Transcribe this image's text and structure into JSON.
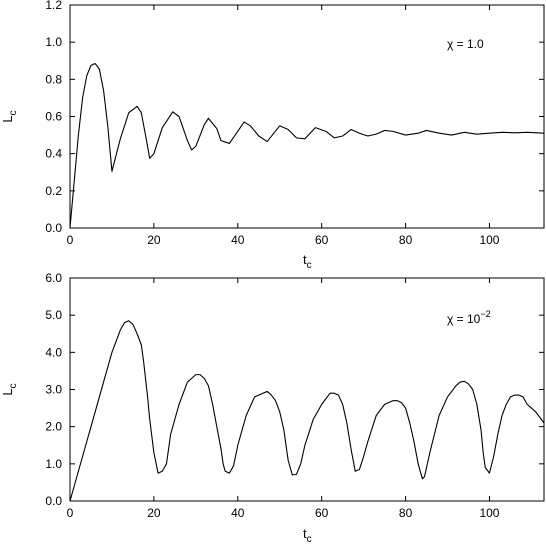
{
  "chart_data": [
    {
      "type": "line",
      "xlabel": "t",
      "xlabel_sub": "c",
      "ylabel": "L",
      "ylabel_sub": "c",
      "xlim": [
        0,
        113
      ],
      "ylim": [
        0,
        1.2
      ],
      "x_ticks": [
        0,
        20,
        40,
        60,
        80,
        100
      ],
      "x_tick_labels": [
        "0",
        "20",
        "40",
        "60",
        "80",
        "100"
      ],
      "y_ticks": [
        0,
        0.2,
        0.4,
        0.6,
        0.8,
        1.0,
        1.2
      ],
      "y_tick_labels": [
        "0.0",
        "0.2",
        "0.4",
        "0.6",
        "0.8",
        "1.0",
        "1.2"
      ],
      "grid": false,
      "annotation": {
        "prefix": "χ = ",
        "value": "1.0",
        "superscript": ""
      },
      "series": [
        {
          "color": "#000000",
          "x": [
            0,
            1,
            2,
            3,
            4,
            5,
            6,
            7,
            8,
            9,
            10,
            12,
            14,
            16,
            17,
            18,
            19,
            20,
            22,
            24.5,
            26,
            28,
            29,
            30,
            32,
            33,
            35,
            36,
            38,
            41.5,
            43,
            45,
            47,
            50,
            52,
            54,
            56,
            58.5,
            61,
            63,
            65,
            67,
            69,
            71,
            73,
            75,
            77,
            80,
            83,
            85,
            88,
            91,
            94,
            97,
            100,
            103,
            106,
            109,
            113
          ],
          "y": [
            0,
            0.25,
            0.5,
            0.7,
            0.82,
            0.875,
            0.885,
            0.855,
            0.74,
            0.55,
            0.305,
            0.48,
            0.62,
            0.655,
            0.62,
            0.5,
            0.375,
            0.4,
            0.54,
            0.625,
            0.6,
            0.47,
            0.42,
            0.44,
            0.555,
            0.59,
            0.535,
            0.47,
            0.455,
            0.57,
            0.55,
            0.495,
            0.465,
            0.55,
            0.53,
            0.485,
            0.48,
            0.54,
            0.52,
            0.485,
            0.495,
            0.53,
            0.51,
            0.495,
            0.505,
            0.525,
            0.52,
            0.5,
            0.51,
            0.525,
            0.51,
            0.5,
            0.515,
            0.505,
            0.51,
            0.515,
            0.512,
            0.515,
            0.51
          ]
        }
      ]
    },
    {
      "type": "line",
      "xlabel": "t",
      "xlabel_sub": "c",
      "ylabel": "L",
      "ylabel_sub": "c",
      "xlim": [
        0,
        113
      ],
      "ylim": [
        0,
        6.0
      ],
      "x_ticks": [
        0,
        20,
        40,
        60,
        80,
        100
      ],
      "x_tick_labels": [
        "0",
        "20",
        "40",
        "60",
        "80",
        "100"
      ],
      "y_ticks": [
        0,
        1,
        2,
        3,
        4,
        5,
        6
      ],
      "y_tick_labels": [
        "0.0",
        "1.0",
        "2.0",
        "3.0",
        "4.0",
        "5.0",
        "6.0"
      ],
      "grid": false,
      "annotation": {
        "prefix": "χ = 10",
        "value": "",
        "superscript": "−2"
      },
      "series": [
        {
          "color": "#000000",
          "x": [
            0,
            2,
            4,
            6,
            8,
            10,
            12,
            13,
            14,
            15,
            16,
            17,
            17.5,
            18,
            18.5,
            19,
            20,
            21,
            22,
            23,
            24,
            26,
            28,
            30,
            31,
            32,
            33,
            34,
            35,
            36,
            36.5,
            37,
            38,
            39,
            40,
            42,
            44,
            46,
            47,
            48,
            49,
            50,
            51,
            52,
            53,
            54,
            55,
            56,
            58,
            60,
            62,
            63,
            64,
            65,
            66,
            67,
            68,
            69,
            70,
            71,
            73,
            75,
            77,
            78,
            79,
            80,
            81,
            82,
            83,
            84,
            84.5,
            85,
            86,
            88,
            90,
            92,
            93,
            94,
            95,
            96,
            97,
            98,
            98.5,
            99,
            100,
            101,
            102,
            103,
            104,
            105,
            106,
            107,
            108,
            109,
            110,
            111,
            112,
            113
          ],
          "y": [
            0,
            0.8,
            1.6,
            2.4,
            3.2,
            4.0,
            4.6,
            4.8,
            4.85,
            4.75,
            4.5,
            4.2,
            3.8,
            3.3,
            2.8,
            2.2,
            1.3,
            0.75,
            0.8,
            1.0,
            1.8,
            2.6,
            3.2,
            3.4,
            3.4,
            3.3,
            3.1,
            2.6,
            2.0,
            1.4,
            1.0,
            0.8,
            0.75,
            0.95,
            1.5,
            2.3,
            2.8,
            2.9,
            2.95,
            2.85,
            2.7,
            2.4,
            1.9,
            1.1,
            0.7,
            0.72,
            1.0,
            1.5,
            2.2,
            2.6,
            2.9,
            2.9,
            2.85,
            2.6,
            2.1,
            1.4,
            0.8,
            0.85,
            1.2,
            1.6,
            2.3,
            2.6,
            2.7,
            2.7,
            2.65,
            2.5,
            2.1,
            1.6,
            1.0,
            0.6,
            0.65,
            0.9,
            1.4,
            2.3,
            2.8,
            3.1,
            3.2,
            3.22,
            3.15,
            3.0,
            2.6,
            1.9,
            1.3,
            0.9,
            0.75,
            1.2,
            1.8,
            2.3,
            2.6,
            2.8,
            2.85,
            2.85,
            2.8,
            2.6,
            2.5,
            2.4,
            2.25,
            2.1
          ]
        }
      ]
    }
  ]
}
